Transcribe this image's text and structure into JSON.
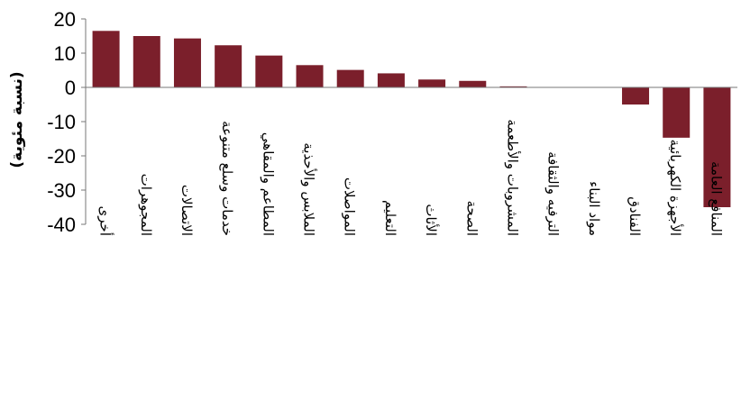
{
  "chart_data": {
    "type": "bar",
    "title": "",
    "xlabel": "",
    "ylabel": "(نسبة مئوية)",
    "ylim": [
      -40,
      20
    ],
    "yticks": [
      20,
      10,
      0,
      -10,
      -20,
      -30,
      -40
    ],
    "grid": false,
    "legend": "none",
    "bar_color": "#7b1f2b",
    "categories": [
      "أخرى",
      "المجوهرات",
      "الاتصالات",
      "خدمات وسلع متنوعة",
      "المطاعم والمقاهي",
      "الملابس والأحذية",
      "المواصلات",
      "التعليم",
      "الأثاث",
      "الصحة",
      "المشروبات والأطعمة",
      "الترفيه والثقافة",
      "مواد البناء",
      "الفنادق",
      "الأجهزة الكهربائية",
      "المنافع العامة"
    ],
    "values": [
      16.5,
      15.0,
      14.3,
      12.3,
      9.3,
      6.5,
      5.1,
      4.1,
      2.3,
      1.9,
      0.3,
      0.0,
      0.0,
      -5.0,
      -14.7,
      -35.0
    ]
  }
}
